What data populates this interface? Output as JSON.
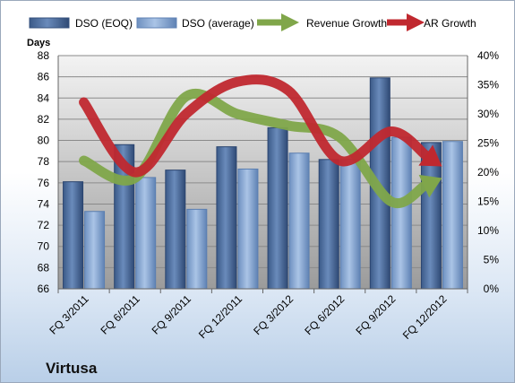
{
  "chart_data": {
    "type": "bar",
    "title": "",
    "company_label": "Virtusa",
    "ylabel_left": "Days",
    "ylim_left": [
      66,
      88
    ],
    "y_ticks_left": [
      "66",
      "68",
      "70",
      "72",
      "74",
      "76",
      "78",
      "80",
      "82",
      "84",
      "86",
      "88"
    ],
    "ylim_right": [
      0,
      40
    ],
    "y_ticks_right": [
      "0%",
      "5%",
      "10%",
      "15%",
      "20%",
      "25%",
      "30%",
      "35%",
      "40%"
    ],
    "categories": [
      "FQ 3/2011",
      "FQ 6/2011",
      "FQ 9/2011",
      "FQ 12/2011",
      "FQ 3/2012",
      "FQ 6/2012",
      "FQ 9/2012",
      "FQ 12/2012"
    ],
    "bar_series": [
      {
        "name": "DSO (EOQ)",
        "values": [
          76.1,
          79.6,
          77.2,
          79.4,
          81.2,
          78.2,
          85.9,
          79.8
        ]
      },
      {
        "name": "DSO (average)",
        "values": [
          73.3,
          76.5,
          73.5,
          77.3,
          78.8,
          78.2,
          80.3,
          79.9
        ]
      }
    ],
    "line_series": [
      {
        "name": "Revenue Growth",
        "axis": "right",
        "values": [
          22,
          19,
          33,
          30,
          28,
          26,
          15,
          19
        ]
      },
      {
        "name": "AR Growth",
        "axis": "right",
        "values": [
          32,
          20,
          30,
          35.5,
          34,
          22,
          27,
          21
        ]
      }
    ],
    "legend_position": "top",
    "grid": true,
    "colors": {
      "dso_eoq": "#4f6fa0",
      "dso_avg": "#86a8d4",
      "revenue_growth": "#80a64a",
      "ar_growth": "#c0282f",
      "plot_bg_top": "#f2f2f2",
      "plot_bg_bottom": "#9a9a9a"
    }
  }
}
